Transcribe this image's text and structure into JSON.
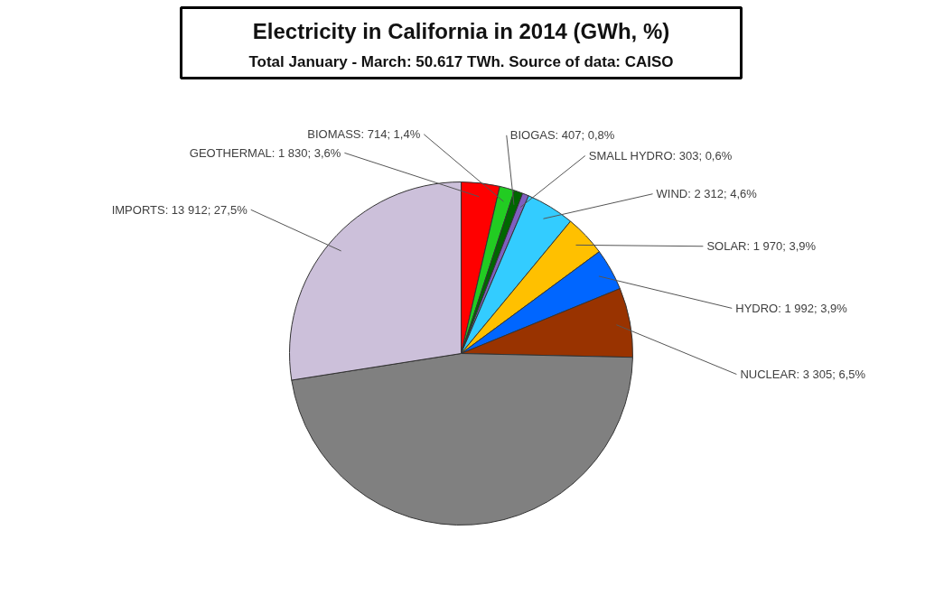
{
  "chart_data": {
    "type": "pie",
    "title": "Electricity in California in 2014 (GWh, %)",
    "subtitle": "Total January - March: 50.617 TWh. Source of data: CAISO",
    "categories": [
      "GEOTHERMAL",
      "BIOMASS",
      "BIOGAS",
      "SMALL HYDRO",
      "WIND",
      "SOLAR",
      "HYDRO",
      "NUCLEAR",
      null,
      "IMPORTS"
    ],
    "values": [
      1830,
      714,
      407,
      303,
      2312,
      1970,
      1992,
      3305,
      23872,
      13912
    ],
    "colors": [
      "#ff0000",
      "#22cc22",
      "#006600",
      "#7f5fbf",
      "#33ccff",
      "#ffc000",
      "#0066ff",
      "#993300",
      "#808080",
      "#ccc0da"
    ],
    "value_labels": [
      "1 830; 3,6%",
      "714; 1,4%",
      "407; 0,8%",
      "303; 0,6%",
      "2 312; 4,6%",
      "1 970; 3,9%",
      "1 992; 3,9%",
      "3 305; 6,5%",
      null,
      "13 912; 27,5%"
    ]
  }
}
